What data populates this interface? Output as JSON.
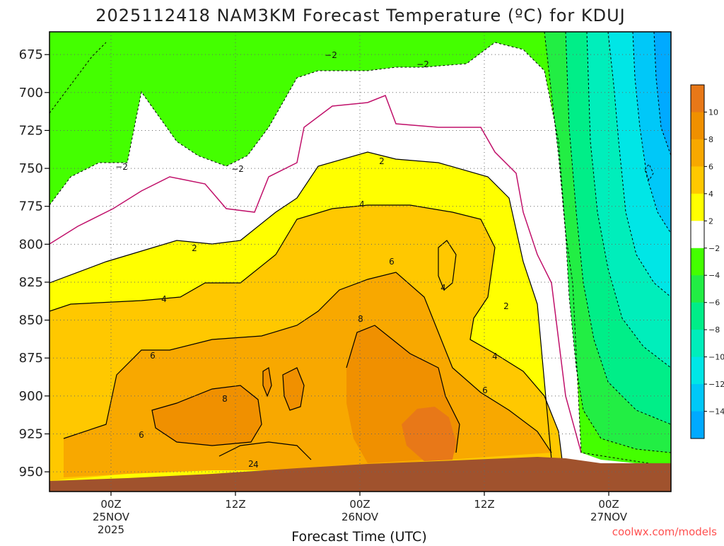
{
  "chart_data": {
    "type": "heatmap",
    "title": "2025112418 NAM3KM Forecast Temperature (ºC) for KDUJ",
    "xlabel": "Forecast Time (UTC)",
    "ylabel": "",
    "credit": "coolwx.com/models",
    "ylim": [
      963,
      660
    ],
    "y_ticks": [
      675,
      700,
      725,
      750,
      775,
      800,
      825,
      850,
      875,
      900,
      925,
      950
    ],
    "x_ticks": [
      {
        "label": "00Z",
        "sub": "25NOV",
        "sub2": "2025"
      },
      {
        "label": "12Z",
        "sub": "",
        "sub2": ""
      },
      {
        "label": "00Z",
        "sub": "26NOV",
        "sub2": ""
      },
      {
        "label": "12Z",
        "sub": "",
        "sub2": ""
      },
      {
        "label": "00Z",
        "sub": "27NOV",
        "sub2": ""
      }
    ],
    "grid": true,
    "colorbar": {
      "labels": [
        "10",
        "8",
        "6",
        "4",
        "2",
        "−2",
        "−4",
        "−6",
        "−8",
        "−10",
        "−12",
        "−14"
      ],
      "colors": [
        "#e87818",
        "#f09000",
        "#f8a800",
        "#ffc800",
        "#ffff00",
        "#ffffff",
        "#44ff00",
        "#22ee44",
        "#00ee88",
        "#00eebb",
        "#00e6e6",
        "#00c8f8",
        "#00aaff"
      ]
    },
    "contour_labels": [
      "−2",
      "−2",
      "−2",
      "−2",
      "2",
      "2",
      "2",
      "2",
      "4",
      "4",
      "4",
      "4",
      "4",
      "6",
      "6",
      "6",
      "6",
      "8",
      "8"
    ],
    "regions": [
      {
        "name": "above 8",
        "temp_c": 9
      },
      {
        "name": "6 to 8",
        "temp_c": 7
      },
      {
        "name": "4 to 6",
        "temp_c": 5
      },
      {
        "name": "2 to 4",
        "temp_c": 3
      },
      {
        "name": "-2 to 2",
        "temp_c": 0
      },
      {
        "name": "-4 to -2",
        "temp_c": -3
      },
      {
        "name": "-6 to -4",
        "temp_c": -5
      },
      {
        "name": "-8 to -6",
        "temp_c": -7
      },
      {
        "name": "-10 to -8",
        "temp_c": -9
      },
      {
        "name": "-12 to -10",
        "temp_c": -11
      },
      {
        "name": "below -12",
        "temp_c": -13
      }
    ]
  }
}
